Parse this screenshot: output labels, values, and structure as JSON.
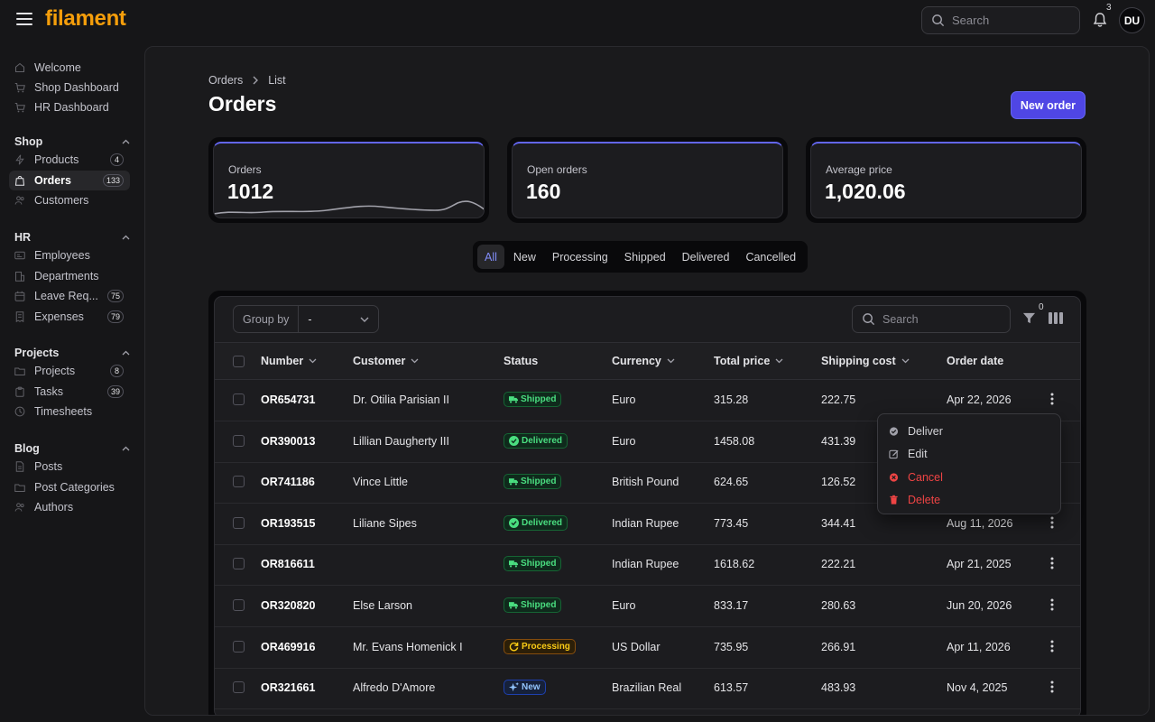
{
  "app": {
    "logo": "filament",
    "search_placeholder": "Search",
    "notification_count": "3",
    "user_initials": "DU"
  },
  "sidebar": {
    "top_items": [
      {
        "label": "Welcome",
        "icon": "home-icon"
      },
      {
        "label": "Shop Dashboard",
        "icon": "cart-icon"
      },
      {
        "label": "HR Dashboard",
        "icon": "cart-icon"
      }
    ],
    "groups": [
      {
        "title": "Shop",
        "items": [
          {
            "label": "Products",
            "badge": "4",
            "icon": "bolt-icon"
          },
          {
            "label": "Orders",
            "badge": "133",
            "icon": "bag-icon",
            "active": true
          },
          {
            "label": "Customers",
            "badge": "",
            "icon": "users-icon"
          }
        ]
      },
      {
        "title": "HR",
        "items": [
          {
            "label": "Employees",
            "badge": "",
            "icon": "id-card-icon"
          },
          {
            "label": "Departments",
            "badge": "",
            "icon": "building-icon"
          },
          {
            "label": "Leave Req...",
            "badge": "75",
            "icon": "calendar-icon"
          },
          {
            "label": "Expenses",
            "badge": "79",
            "icon": "receipt-icon"
          }
        ]
      },
      {
        "title": "Projects",
        "items": [
          {
            "label": "Projects",
            "badge": "8",
            "icon": "folder-icon"
          },
          {
            "label": "Tasks",
            "badge": "39",
            "icon": "clipboard-icon"
          },
          {
            "label": "Timesheets",
            "badge": "",
            "icon": "clock-icon"
          }
        ]
      },
      {
        "title": "Blog",
        "items": [
          {
            "label": "Posts",
            "badge": "",
            "icon": "document-icon"
          },
          {
            "label": "Post Categories",
            "badge": "",
            "icon": "folder-icon"
          },
          {
            "label": "Authors",
            "badge": "",
            "icon": "users-icon"
          }
        ]
      }
    ]
  },
  "page": {
    "breadcrumb": [
      "Orders",
      "List"
    ],
    "title": "Orders",
    "new_button": "New order"
  },
  "stats": [
    {
      "label": "Orders",
      "value": "1012",
      "has_sparkline": true
    },
    {
      "label": "Open orders",
      "value": "160"
    },
    {
      "label": "Average price",
      "value": "1,020.06"
    }
  ],
  "tabs": [
    {
      "label": "All",
      "active": true
    },
    {
      "label": "New"
    },
    {
      "label": "Processing"
    },
    {
      "label": "Shipped"
    },
    {
      "label": "Delivered"
    },
    {
      "label": "Cancelled"
    }
  ],
  "table": {
    "group_by_label": "Group by",
    "group_by_value": "-",
    "search_placeholder": "Search",
    "filter_count": "0",
    "columns": [
      "Number",
      "Customer",
      "Status",
      "Currency",
      "Total price",
      "Shipping cost",
      "Order date"
    ],
    "rows": [
      {
        "number": "OR654731",
        "customer": "Dr. Otilia Parisian II",
        "status": "Shipped",
        "status_kind": "shipped",
        "currency": "Euro",
        "total": "315.28",
        "shipping": "222.75",
        "date": "Apr 22, 2026"
      },
      {
        "number": "OR390013",
        "customer": "Lillian Daugherty III",
        "status": "Delivered",
        "status_kind": "delivered",
        "currency": "Euro",
        "total": "1458.08",
        "shipping": "431.39",
        "date": ""
      },
      {
        "number": "OR741186",
        "customer": "Vince Little",
        "status": "Shipped",
        "status_kind": "shipped",
        "currency": "British Pound",
        "total": "624.65",
        "shipping": "126.52",
        "date": ""
      },
      {
        "number": "OR193515",
        "customer": "Liliane Sipes",
        "status": "Delivered",
        "status_kind": "delivered",
        "currency": "Indian Rupee",
        "total": "773.45",
        "shipping": "344.41",
        "date": "Aug 11, 2026"
      },
      {
        "number": "OR816611",
        "customer": "",
        "status": "Shipped",
        "status_kind": "shipped",
        "currency": "Indian Rupee",
        "total": "1618.62",
        "shipping": "222.21",
        "date": "Apr 21, 2025"
      },
      {
        "number": "OR320820",
        "customer": "Else Larson",
        "status": "Shipped",
        "status_kind": "shipped",
        "currency": "Euro",
        "total": "833.17",
        "shipping": "280.63",
        "date": "Jun 20, 2026"
      },
      {
        "number": "OR469916",
        "customer": "Mr. Evans Homenick I",
        "status": "Processing",
        "status_kind": "processing",
        "currency": "US Dollar",
        "total": "735.95",
        "shipping": "266.91",
        "date": "Apr 11, 2026"
      },
      {
        "number": "OR321661",
        "customer": "Alfredo D'Amore",
        "status": "New",
        "status_kind": "new",
        "currency": "Brazilian Real",
        "total": "613.57",
        "shipping": "483.93",
        "date": "Nov 4, 2025"
      }
    ]
  },
  "row_menu": [
    {
      "label": "Deliver",
      "icon": "check-circle-icon",
      "danger": false
    },
    {
      "label": "Edit",
      "icon": "pencil-icon",
      "danger": false
    },
    {
      "label": "Cancel",
      "icon": "x-circle-icon",
      "danger": true
    },
    {
      "label": "Delete",
      "icon": "trash-icon",
      "danger": true
    }
  ],
  "colors": {
    "accent": "#6366f1",
    "brand": "#f59e0b",
    "success": "#4ade80",
    "warning": "#facc15",
    "danger": "#ef4444"
  }
}
